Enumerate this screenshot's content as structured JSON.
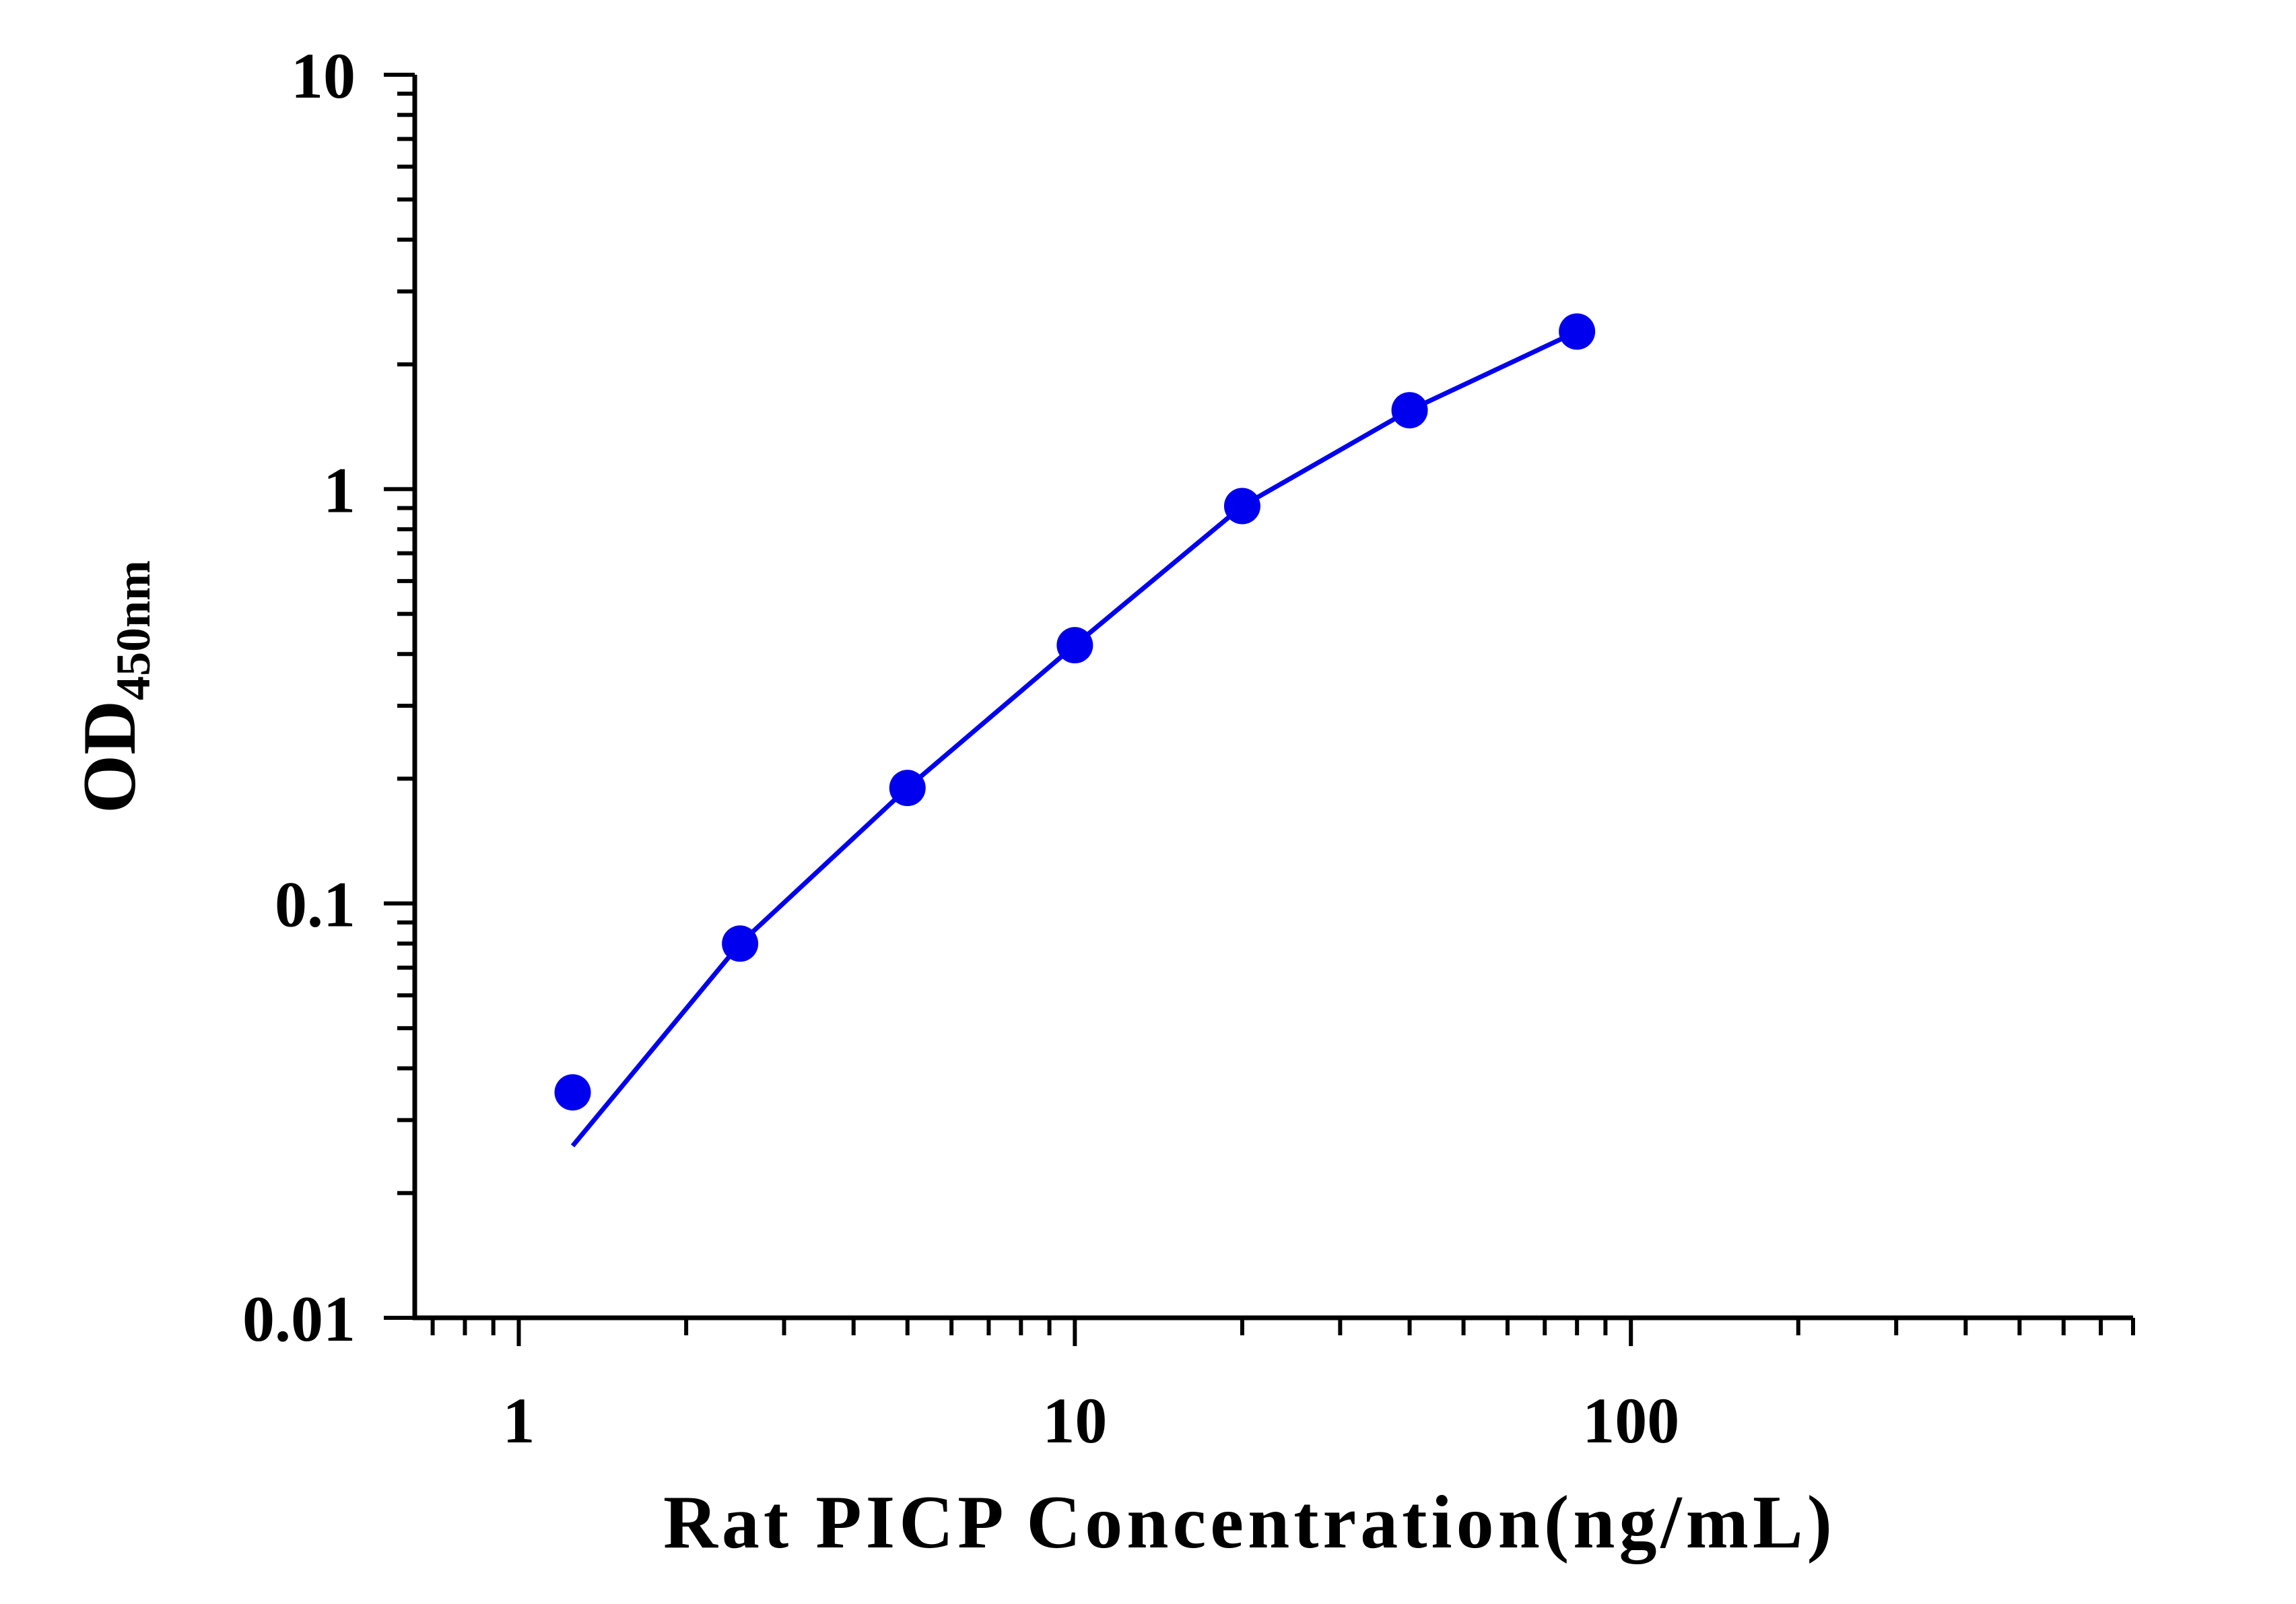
{
  "chart_data": {
    "type": "scatter",
    "title": "",
    "xlabel": "Rat PICP Concentration(ng/mL)",
    "ylabel_main": "OD",
    "ylabel_sub": "450nm",
    "x_scale": "log",
    "y_scale": "log",
    "xlim": [
      0.65,
      800
    ],
    "ylim": [
      0.01,
      10
    ],
    "x_ticks": [
      {
        "value": 1,
        "label": "1"
      },
      {
        "value": 10,
        "label": "10"
      },
      {
        "value": 100,
        "label": "100"
      }
    ],
    "y_ticks": [
      {
        "value": 0.01,
        "label": "0.01"
      },
      {
        "value": 0.1,
        "label": "0.1"
      },
      {
        "value": 1,
        "label": "1"
      },
      {
        "value": 10,
        "label": "10"
      }
    ],
    "grid": false,
    "series": [
      {
        "color": "#0000ee",
        "points": [
          {
            "x": 1.25,
            "y": 0.035
          },
          {
            "x": 2.5,
            "y": 0.08
          },
          {
            "x": 5,
            "y": 0.19
          },
          {
            "x": 10,
            "y": 0.42
          },
          {
            "x": 20,
            "y": 0.91
          },
          {
            "x": 40,
            "y": 1.55
          },
          {
            "x": 80,
            "y": 2.4
          }
        ],
        "fit_curve": [
          {
            "x": 1.25,
            "y": 0.026
          },
          {
            "x": 2.5,
            "y": 0.08
          },
          {
            "x": 5,
            "y": 0.19
          },
          {
            "x": 10,
            "y": 0.42
          },
          {
            "x": 20,
            "y": 0.91
          },
          {
            "x": 40,
            "y": 1.55
          },
          {
            "x": 80,
            "y": 2.4
          }
        ]
      }
    ]
  }
}
